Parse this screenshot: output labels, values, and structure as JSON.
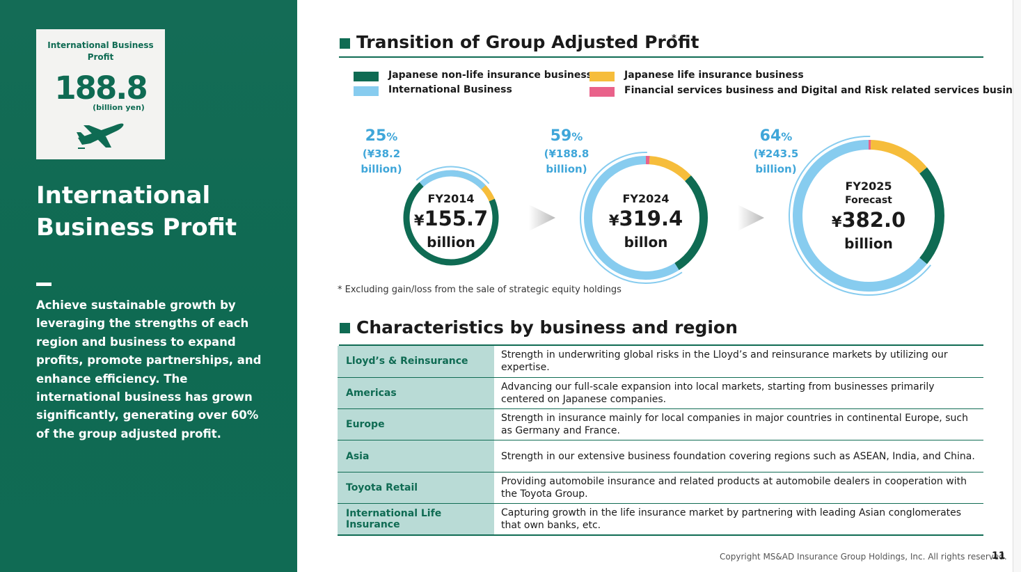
{
  "kpi": {
    "label": "International Business Profit",
    "value": "188.8",
    "unit": "(billion yen)",
    "icon": "airplane-icon"
  },
  "left": {
    "title": "International Business Profit",
    "body": "Achieve sustainable growth by leveraging the strengths of each region and business to expand profits, promote partnerships, and enhance efficiency. The international business has grown significantly, generating over 60% of the group adjusted profit."
  },
  "section1": {
    "title": "Transition of Group Adjusted Profit",
    "sup": "*"
  },
  "footnote": "* Excluding gain/loss from the sale of strategic equity holdings",
  "section2": {
    "title": "Characteristics by business and region"
  },
  "colors": {
    "brand": "#0f6b53",
    "nonlife": "#0f6b53",
    "international": "#87ccef",
    "life": "#f6bd3b",
    "financial": "#e9628a",
    "share_text": "#3fa6d9",
    "table_header_bg": "#b9dbd6"
  },
  "chart_data": {
    "type": "donut",
    "series": [
      {
        "name": "Japanese non-life insurance business",
        "color": "#0f6b53"
      },
      {
        "name": "International Business",
        "color": "#87ccef"
      },
      {
        "name": "Japanese life insurance business",
        "color": "#f6bd3b"
      },
      {
        "name": "Financial services business and Digital and Risk related services business",
        "color": "#e9628a"
      }
    ],
    "donuts": [
      {
        "period": "FY2014",
        "sub": "",
        "total_yen": "¥",
        "total": "155.7",
        "unit": "billion",
        "share_pct": "25",
        "share_pct_symbol": "%",
        "share_amount_line1": "(¥38.2",
        "share_amount_line2": "billion)",
        "values": [
          0.7,
          0.245,
          0.16,
          0.025
        ],
        "order": [
          "financial",
          "life",
          "nonlife",
          "international"
        ]
      },
      {
        "period": "FY2024",
        "sub": "",
        "total_yen": "¥",
        "total": "319.4",
        "unit": "billon",
        "share_pct": "59",
        "share_pct_symbol": "%",
        "share_amount_line1": "(¥188.8",
        "share_amount_line2": "billion)",
        "values": [
          0.28,
          0.59,
          0.12,
          0.01
        ],
        "order": [
          "financial",
          "life",
          "nonlife",
          "international"
        ]
      },
      {
        "period": "FY2025",
        "sub": "Forecast",
        "total_yen": "¥",
        "total": "382.0",
        "unit": "billion",
        "share_pct": "64",
        "share_pct_symbol": "%",
        "share_amount_line1": "(¥243.5",
        "share_amount_line2": "billion)",
        "values": [
          0.22,
          0.64,
          0.135,
          0.005
        ],
        "order": [
          "financial",
          "life",
          "nonlife",
          "international"
        ]
      }
    ]
  },
  "table": {
    "rows": [
      {
        "region": "Lloyd’s & Reinsurance",
        "description": "Strength in underwriting global risks in the Lloyd’s and reinsurance markets by utilizing our expertise."
      },
      {
        "region": "Americas",
        "description": "Advancing our full-scale expansion into local markets, starting from businesses primarily centered on Japanese companies."
      },
      {
        "region": "Europe",
        "description": "Strength in insurance mainly for local companies in major countries in continental Europe, such as Germany and France."
      },
      {
        "region": "Asia",
        "description": "Strength in our extensive business foundation covering regions such as ASEAN, India, and China."
      },
      {
        "region": "Toyota Retail",
        "description": "Providing automobile insurance and related products at automobile dealers in cooperation with the Toyota Group."
      },
      {
        "region": "International Life Insurance",
        "description": "Capturing growth in the life insurance market by partnering with leading Asian conglomerates that own banks, etc."
      }
    ]
  },
  "footer": {
    "copyright": "Copyright MS&AD Insurance Group Holdings, Inc. All rights reserved.",
    "page": "11"
  }
}
